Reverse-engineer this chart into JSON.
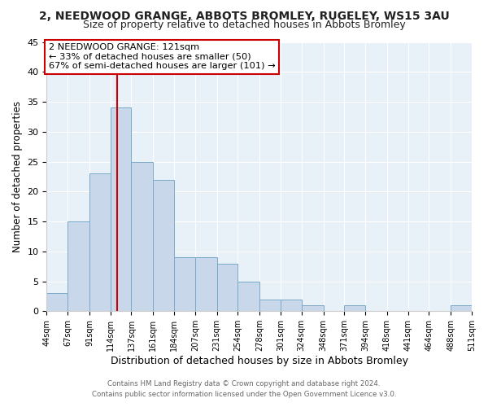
{
  "title": "2, NEEDWOOD GRANGE, ABBOTS BROMLEY, RUGELEY, WS15 3AU",
  "subtitle": "Size of property relative to detached houses in Abbots Bromley",
  "xlabel": "Distribution of detached houses by size in Abbots Bromley",
  "ylabel": "Number of detached properties",
  "bin_edges": [
    44,
    67,
    91,
    114,
    137,
    161,
    184,
    207,
    231,
    254,
    278,
    301,
    324,
    348,
    371,
    394,
    418,
    441,
    464,
    488,
    511
  ],
  "bin_counts": [
    3,
    15,
    23,
    34,
    25,
    22,
    9,
    9,
    8,
    5,
    2,
    2,
    1,
    0,
    1,
    0,
    0,
    0,
    0,
    1
  ],
  "bar_color": "#c8d8ea",
  "bar_edge_color": "#7aaac8",
  "property_size": 121,
  "vline_color": "#cc0000",
  "annotation_title": "2 NEEDWOOD GRANGE: 121sqm",
  "annotation_line1": "← 33% of detached houses are smaller (50)",
  "annotation_line2": "67% of semi-detached houses are larger (101) →",
  "annotation_box_color": "#ffffff",
  "annotation_box_edge_color": "#cc0000",
  "ylim": [
    0,
    45
  ],
  "yticks": [
    0,
    5,
    10,
    15,
    20,
    25,
    30,
    35,
    40,
    45
  ],
  "footer1": "Contains HM Land Registry data © Crown copyright and database right 2024.",
  "footer2": "Contains public sector information licensed under the Open Government Licence v3.0.",
  "bg_color": "#ffffff",
  "plot_bg_color": "#e8f0f8"
}
